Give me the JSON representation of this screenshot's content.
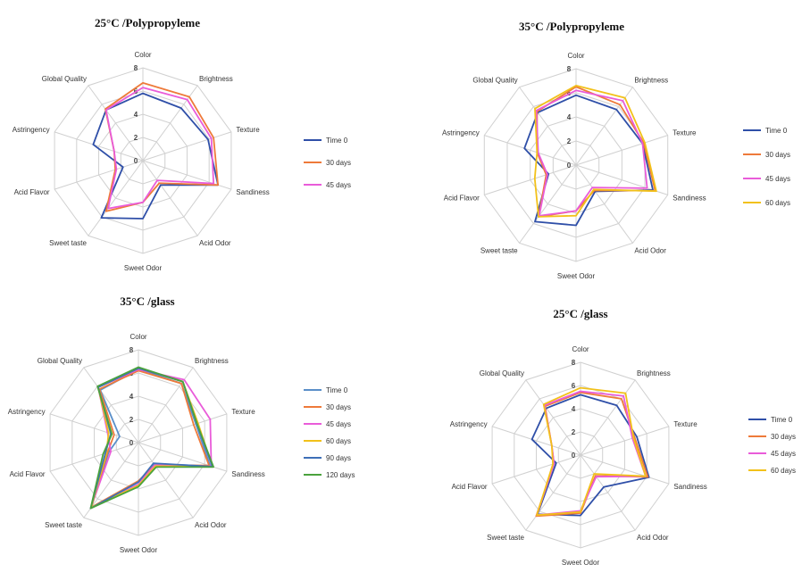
{
  "chart_data": [
    {
      "type": "radar",
      "title": "25°C /Polypropyleme",
      "axes": [
        "Color",
        "Brightness",
        "Texture",
        "Sandiness",
        "Acid Odor",
        "Sweet Odor",
        "Sweet taste",
        "Acid Flavor",
        "Astringency",
        "Global Quality"
      ],
      "rlim": [
        0,
        8
      ],
      "ticks": [
        "0",
        "2",
        "4",
        "6",
        "8"
      ],
      "series": [
        {
          "name": "Time 0",
          "color": "#2f4fa8",
          "values": [
            5.8,
            5.6,
            5.9,
            6.8,
            2.6,
            5.0,
            6.1,
            1.8,
            4.5,
            5.4
          ]
        },
        {
          "name": "30 days",
          "color": "#ee7a3a",
          "values": [
            6.7,
            6.8,
            6.4,
            6.8,
            2.4,
            3.6,
            5.4,
            2.5,
            2.6,
            5.5
          ]
        },
        {
          "name": "45 days",
          "color": "#e95cd9",
          "values": [
            6.3,
            6.5,
            6.2,
            6.4,
            2.1,
            3.6,
            5.1,
            2.4,
            2.6,
            5.4
          ]
        }
      ]
    },
    {
      "type": "radar",
      "title": "35°C /Polypropyleme",
      "axes": [
        "Color",
        "Brightness",
        "Texture",
        "Sandiness",
        "Acid Odor",
        "Sweet Odor",
        "Sweet taste",
        "Acid Flavor",
        "Astringency",
        "Global Quality"
      ],
      "rlim": [
        0,
        8
      ],
      "ticks": [
        "0",
        "2",
        "4",
        "6",
        "8"
      ],
      "series": [
        {
          "name": "Time 0",
          "color": "#2f4fa8",
          "values": [
            5.8,
            5.7,
            5.8,
            6.7,
            2.7,
            5.0,
            5.8,
            2.4,
            4.5,
            5.4
          ]
        },
        {
          "name": "30 days",
          "color": "#ee7a3a",
          "values": [
            6.5,
            6.2,
            5.9,
            6.9,
            2.6,
            3.8,
            5.3,
            2.6,
            3.4,
            5.5
          ]
        },
        {
          "name": "45 days",
          "color": "#e95cd9",
          "values": [
            6.2,
            6.6,
            5.8,
            6.2,
            2.3,
            3.8,
            5.2,
            2.5,
            3.3,
            5.6
          ]
        },
        {
          "name": "60 days",
          "color": "#f2c11a",
          "values": [
            6.6,
            6.9,
            6.0,
            7.0,
            2.5,
            4.2,
            5.3,
            3.6,
            3.4,
            5.8
          ]
        }
      ]
    },
    {
      "type": "radar",
      "title": "35°C /glass",
      "axes": [
        "Color",
        "Brightness",
        "Texture",
        "Sandiness",
        "Acid Odor",
        "Sweet Odor",
        "Sweet taste",
        "Acid Flavor",
        "Astringency",
        "Global Quality"
      ],
      "rlim": [
        0,
        8
      ],
      "ticks": [
        "0",
        "2",
        "4",
        "6",
        "8"
      ],
      "series": [
        {
          "name": "Time 0",
          "color": "#5b8fc9",
          "values": [
            6.3,
            6.3,
            5.2,
            6.5,
            2.3,
            3.4,
            6.9,
            2.7,
            1.7,
            5.6
          ]
        },
        {
          "name": "30 days",
          "color": "#ee7a3a",
          "values": [
            6.2,
            6.3,
            5.0,
            6.4,
            2.4,
            3.3,
            6.9,
            2.8,
            2.2,
            5.7
          ]
        },
        {
          "name": "45 days",
          "color": "#e95cd9",
          "values": [
            6.3,
            6.7,
            6.5,
            6.6,
            2.4,
            3.6,
            7.0,
            2.5,
            2.8,
            5.9
          ]
        },
        {
          "name": "60 days",
          "color": "#f2c11a",
          "values": [
            6.4,
            6.5,
            5.4,
            6.7,
            2.5,
            3.7,
            6.9,
            2.9,
            2.7,
            5.9
          ]
        },
        {
          "name": "90 days",
          "color": "#3e6fb8",
          "values": [
            6.4,
            6.5,
            5.3,
            6.7,
            2.2,
            3.4,
            7.0,
            3.0,
            2.5,
            5.9
          ]
        },
        {
          "name": "120 days",
          "color": "#4aa23d",
          "values": [
            6.5,
            6.5,
            5.3,
            6.8,
            2.6,
            3.8,
            7.0,
            3.2,
            2.4,
            6.0
          ]
        }
      ]
    },
    {
      "type": "radar",
      "title": "25°C /glass",
      "axes": [
        "Color",
        "Brightness",
        "Texture",
        "Sandiness",
        "Acid Odor",
        "Sweet Odor",
        "Sweet taste",
        "Acid Flavor",
        "Astringency",
        "Global Quality"
      ],
      "rlim": [
        0,
        8
      ],
      "ticks": [
        "0",
        "2",
        "4",
        "6",
        "8"
      ],
      "series": [
        {
          "name": "Time 0",
          "color": "#2f4fa8",
          "values": [
            5.2,
            5.3,
            5.1,
            6.2,
            3.4,
            5.2,
            6.3,
            2.2,
            4.4,
            5.0
          ]
        },
        {
          "name": "30 days",
          "color": "#ee7a3a",
          "values": [
            5.4,
            6.0,
            4.9,
            6.1,
            2.2,
            5.0,
            6.5,
            2.4,
            2.6,
            5.2
          ]
        },
        {
          "name": "45 days",
          "color": "#e95cd9",
          "values": [
            5.5,
            6.3,
            4.7,
            5.9,
            2.3,
            4.8,
            6.4,
            2.4,
            2.6,
            5.3
          ]
        },
        {
          "name": "60 days",
          "color": "#f2c11a",
          "values": [
            5.8,
            6.6,
            4.8,
            5.9,
            2.0,
            4.9,
            6.4,
            2.5,
            2.6,
            5.4
          ]
        }
      ]
    }
  ]
}
